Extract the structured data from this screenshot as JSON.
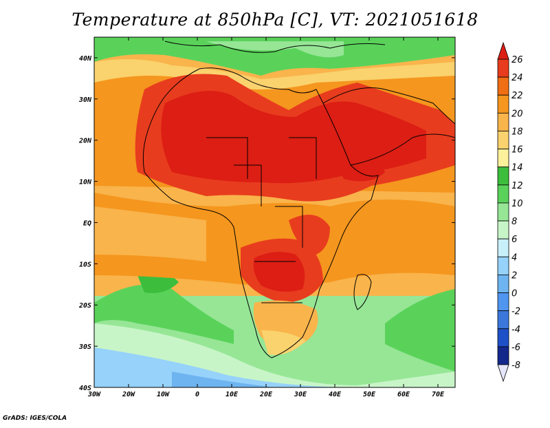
{
  "title": "Temperature at 850hPa [C], VT: 2021051618",
  "credit": "GrADS: IGES/COLA",
  "map": {
    "lon_ticks": [
      "30W",
      "20W",
      "10W",
      "0",
      "10E",
      "20E",
      "30E",
      "40E",
      "50E",
      "60E",
      "70E"
    ],
    "lat_ticks": [
      "40N",
      "30N",
      "20N",
      "10N",
      "EQ",
      "10S",
      "20S",
      "30S",
      "40S"
    ],
    "lon_range": [
      -30,
      75
    ],
    "lat_range": [
      -40,
      45
    ]
  },
  "colorbar": {
    "labels": [
      "26",
      "24",
      "22",
      "20",
      "18",
      "16",
      "14",
      "12",
      "10",
      "8",
      "6",
      "4",
      "2",
      "0",
      "-2",
      "-4",
      "-6",
      "-8"
    ],
    "colors": [
      "#dc1e14",
      "#e83c1e",
      "#f06e14",
      "#f5961e",
      "#f9b44b",
      "#fad26e",
      "#fcf09b",
      "#3cbe3c",
      "#5ad25a",
      "#96e696",
      "#c8f5c8",
      "#c8f0fa",
      "#96d2fa",
      "#6eb4f0",
      "#5096f0",
      "#3c78dc",
      "#1e50c8",
      "#14288c",
      "#e6e6fa"
    ],
    "top_color": "#dc1e14",
    "bottom_color": "#e6e6fa"
  }
}
